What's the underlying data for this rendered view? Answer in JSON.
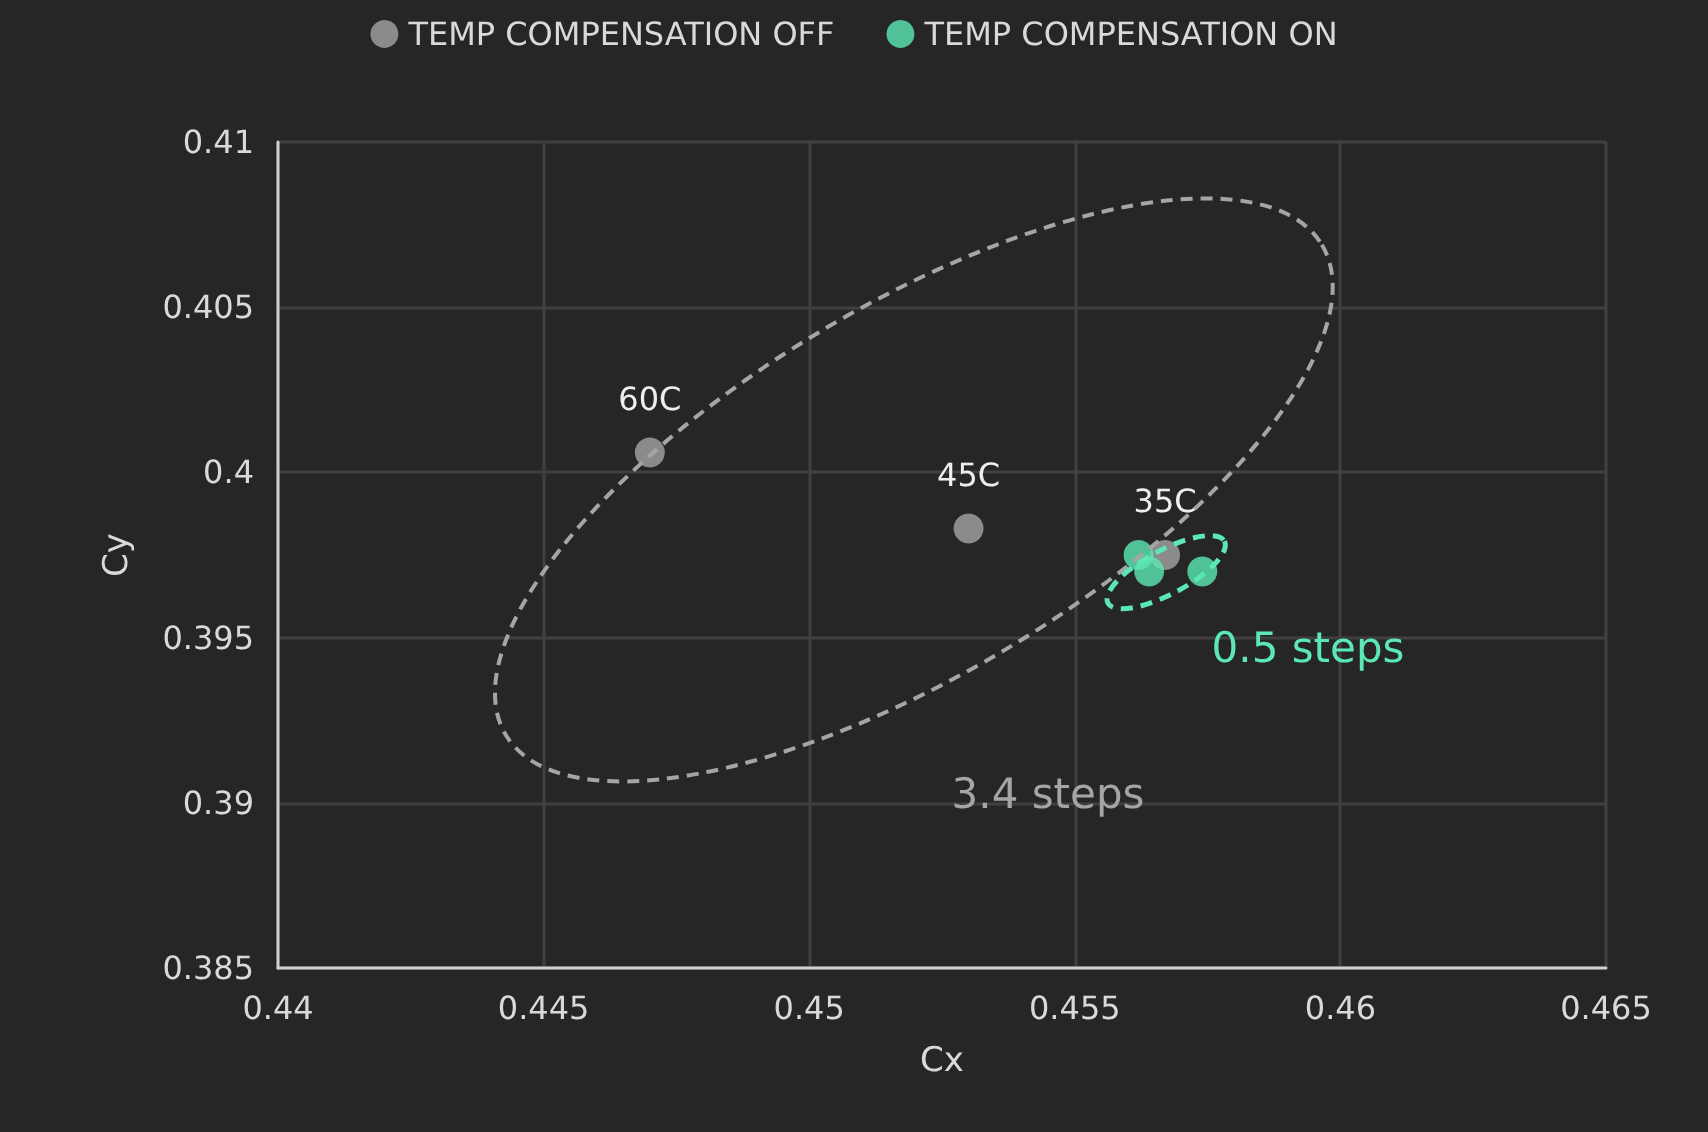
{
  "chart_data": {
    "type": "scatter",
    "xlabel": "Cx",
    "ylabel": "Cy",
    "legend": "top",
    "grid": true,
    "marker": "circle",
    "xlim": [
      0.44,
      0.465
    ],
    "xticks": [
      0.44,
      0.445,
      0.45,
      0.455,
      0.46,
      0.465
    ],
    "ylim": [
      0.385,
      0.41
    ],
    "yticks": [
      0.385,
      0.39,
      0.395,
      0.4,
      0.405,
      0.41
    ],
    "series": [
      {
        "name": "TEMP COMPENSATION OFF",
        "color": "#a5a5a5",
        "x": [
          0.447,
          0.453,
          0.4567
        ],
        "values": [
          0.4006,
          0.3983,
          0.3975
        ]
      },
      {
        "name": "TEMP COMPENSATION ON",
        "color": "#5ce8b5",
        "x": [
          0.4562,
          0.4564,
          0.4574
        ],
        "values": [
          0.3975,
          0.397,
          0.397
        ]
      }
    ],
    "annotations": [
      {
        "text": "60C",
        "x": 0.447,
        "y": 0.4006
      },
      {
        "text": "45C",
        "x": 0.453,
        "y": 0.3983
      },
      {
        "text": "35C",
        "x": 0.4567,
        "y": 0.3975
      },
      "3.4 steps",
      "0.5 steps"
    ]
  }
}
